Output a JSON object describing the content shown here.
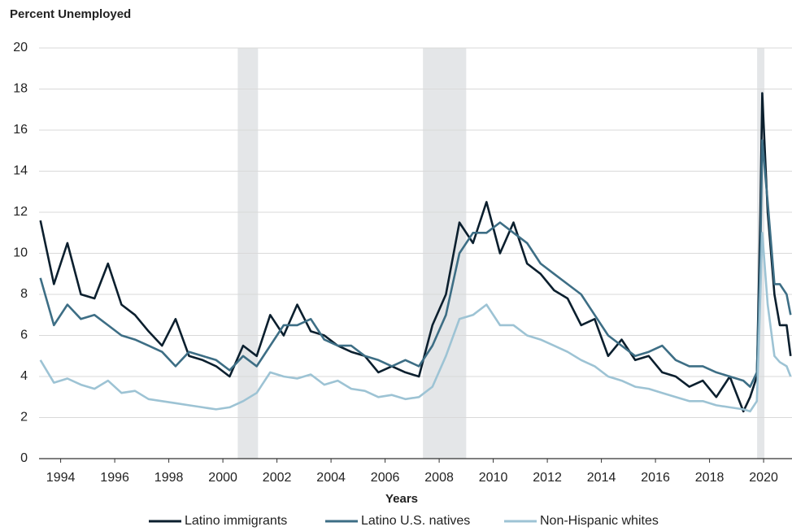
{
  "chart_data": {
    "type": "line",
    "ylabel": "Percent Unemployed",
    "xlabel": "Years",
    "xlim": [
      1993.2,
      2021.05
    ],
    "ylim": [
      0,
      20
    ],
    "xticks": [
      1994,
      1996,
      1998,
      2000,
      2002,
      2004,
      2006,
      2008,
      2010,
      2012,
      2014,
      2016,
      2018,
      2020
    ],
    "yticks": [
      0,
      2,
      4,
      6,
      8,
      10,
      12,
      14,
      16,
      18,
      20
    ],
    "grid": true,
    "recessions": [
      [
        2000.55,
        2001.3
      ],
      [
        2007.4,
        2009.0
      ],
      [
        2019.76,
        2020.03
      ]
    ],
    "recession_color": "#e4e6e8",
    "x": [
      1993.25,
      1993.75,
      1994.25,
      1994.75,
      1995.25,
      1995.75,
      1996.25,
      1996.75,
      1997.25,
      1997.75,
      1998.25,
      1998.75,
      1999.25,
      1999.75,
      2000.25,
      2000.75,
      2001.25,
      2001.75,
      2002.25,
      2002.75,
      2003.25,
      2003.75,
      2004.25,
      2004.75,
      2005.25,
      2005.75,
      2006.25,
      2006.75,
      2007.25,
      2007.75,
      2008.25,
      2008.75,
      2009.25,
      2009.75,
      2010.25,
      2010.75,
      2011.25,
      2011.75,
      2012.25,
      2012.75,
      2013.25,
      2013.75,
      2014.25,
      2014.75,
      2015.25,
      2015.75,
      2016.25,
      2016.75,
      2017.25,
      2017.75,
      2018.25,
      2018.75,
      2019.25,
      2019.5,
      2019.75,
      2019.88,
      2019.95,
      2020.15,
      2020.4,
      2020.6,
      2020.85,
      2021.0
    ],
    "series": [
      {
        "name": "Latino immigrants",
        "color": "#0b1f2e",
        "values": [
          11.6,
          8.5,
          10.5,
          8.0,
          7.8,
          9.5,
          7.5,
          7.0,
          6.2,
          5.5,
          6.8,
          5.0,
          4.8,
          4.5,
          4.0,
          5.5,
          5.0,
          7.0,
          6.0,
          7.5,
          6.2,
          6.0,
          5.5,
          5.2,
          5.0,
          4.2,
          4.5,
          4.2,
          4.0,
          6.5,
          8.0,
          11.5,
          10.5,
          12.5,
          10.0,
          11.5,
          9.5,
          9.0,
          8.2,
          7.8,
          6.5,
          6.8,
          5.0,
          5.8,
          4.8,
          5.0,
          4.2,
          4.0,
          3.5,
          3.8,
          3.0,
          4.0,
          2.3,
          3.0,
          4.0,
          12.0,
          17.8,
          12.0,
          8.0,
          6.5,
          6.5,
          5.0
        ]
      },
      {
        "name": "Latino U.S. natives",
        "color": "#3d6e85",
        "values": [
          8.8,
          6.5,
          7.5,
          6.8,
          7.0,
          6.5,
          6.0,
          5.8,
          5.5,
          5.2,
          4.5,
          5.2,
          5.0,
          4.8,
          4.3,
          5.0,
          4.5,
          5.5,
          6.5,
          6.5,
          6.8,
          5.8,
          5.5,
          5.5,
          5.0,
          4.8,
          4.5,
          4.8,
          4.5,
          5.5,
          7.0,
          10.0,
          11.0,
          11.0,
          11.5,
          11.0,
          10.5,
          9.5,
          9.0,
          8.5,
          8.0,
          7.0,
          6.0,
          5.5,
          5.0,
          5.2,
          5.5,
          4.8,
          4.5,
          4.5,
          4.2,
          4.0,
          3.8,
          3.5,
          4.2,
          10.0,
          15.5,
          12.5,
          8.5,
          8.5,
          8.0,
          7.0
        ]
      },
      {
        "name": "Non-Hispanic whites",
        "color": "#9dc3d4",
        "values": [
          4.8,
          3.7,
          3.9,
          3.6,
          3.4,
          3.8,
          3.2,
          3.3,
          2.9,
          2.8,
          2.7,
          2.6,
          2.5,
          2.4,
          2.5,
          2.8,
          3.2,
          4.2,
          4.0,
          3.9,
          4.1,
          3.6,
          3.8,
          3.4,
          3.3,
          3.0,
          3.1,
          2.9,
          3.0,
          3.5,
          5.0,
          6.8,
          7.0,
          7.5,
          6.5,
          6.5,
          6.0,
          5.8,
          5.5,
          5.2,
          4.8,
          4.5,
          4.0,
          3.8,
          3.5,
          3.4,
          3.2,
          3.0,
          2.8,
          2.8,
          2.6,
          2.5,
          2.4,
          2.3,
          2.8,
          8.0,
          11.0,
          7.5,
          5.0,
          4.7,
          4.5,
          4.0
        ]
      }
    ]
  }
}
